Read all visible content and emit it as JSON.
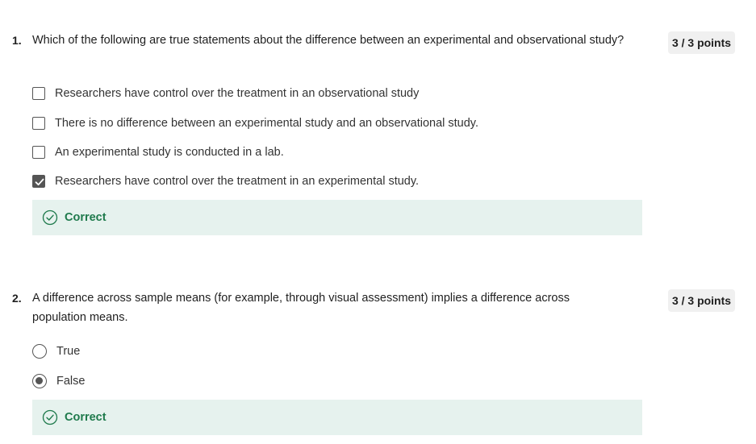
{
  "questions": [
    {
      "number": "1.",
      "text": "Which of the following are true statements about the difference  between an experimental and observational study?",
      "points": "3 / 3 points",
      "type": "checkbox",
      "options": [
        {
          "label": "Researchers have control over the treatment in an observational study",
          "checked": false
        },
        {
          "label": "There is no difference between an experimental study and an observational study.",
          "checked": false
        },
        {
          "label": "An experimental study is conducted in a lab.",
          "checked": false
        },
        {
          "label": "Researchers have control over the treatment in an experimental study.",
          "checked": true
        }
      ],
      "feedback": {
        "label": "Correct",
        "icon": "check-circle-icon",
        "color": "#1f7a4c"
      }
    },
    {
      "number": "2.",
      "text": "A difference across sample means (for example, through visual assessment) implies a difference across population means.",
      "points": "3 / 3 points",
      "type": "radio",
      "options": [
        {
          "label": "True",
          "checked": false
        },
        {
          "label": "False",
          "checked": true
        }
      ],
      "feedback": {
        "label": "Correct",
        "icon": "check-circle-icon",
        "color": "#1f7a4c"
      }
    }
  ],
  "colors": {
    "feedback_bg": "#e6f2ee",
    "correct_green": "#1f7a4c",
    "badge_bg": "#f0f0f0"
  }
}
